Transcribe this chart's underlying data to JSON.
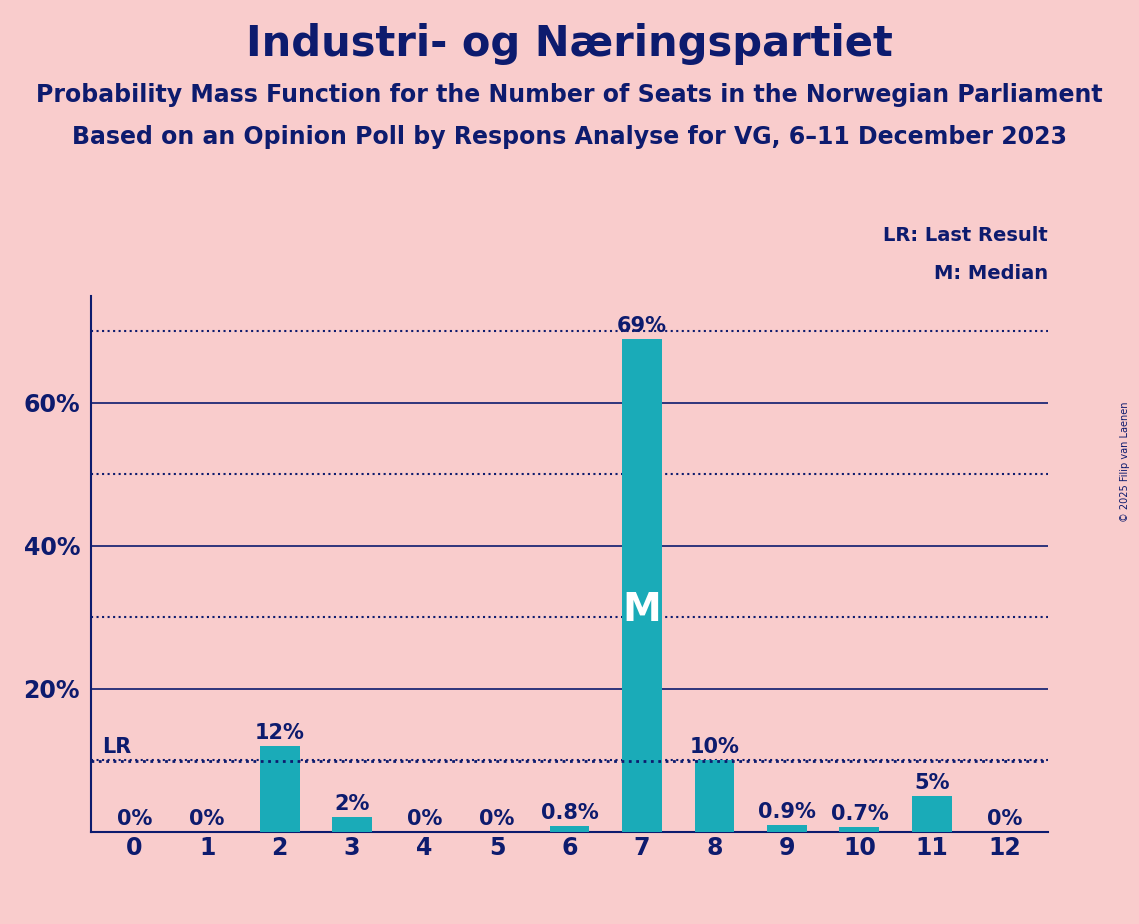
{
  "title": "Industri- og Næringspartiet",
  "subtitle1": "Probability Mass Function for the Number of Seats in the Norwegian Parliament",
  "subtitle2": "Based on an Opinion Poll by Respons Analyse for VG, 6–11 December 2023",
  "copyright": "© 2025 Filip van Laenen",
  "categories": [
    0,
    1,
    2,
    3,
    4,
    5,
    6,
    7,
    8,
    9,
    10,
    11,
    12
  ],
  "values": [
    0.0,
    0.0,
    0.12,
    0.02,
    0.0,
    0.0,
    0.008,
    0.69,
    0.1,
    0.009,
    0.007,
    0.05,
    0.0
  ],
  "labels": [
    "0%",
    "0%",
    "12%",
    "2%",
    "0%",
    "0%",
    "0.8%",
    "69%",
    "10%",
    "0.9%",
    "0.7%",
    "5%",
    "0%"
  ],
  "bar_color": "#1AABB8",
  "background_color": "#F9CCCC",
  "text_color": "#0D1B6E",
  "median_seat": 7,
  "lr_value": 0.099,
  "lr_label": "LR",
  "lr_legend": "LR: Last Result",
  "median_legend": "M: Median",
  "median_label": "M",
  "ylim": [
    0,
    0.75
  ],
  "solid_yticks": [
    0.2,
    0.4,
    0.6
  ],
  "solid_ytick_labels": [
    "20%",
    "40%",
    "60%"
  ],
  "dotted_yticks": [
    0.1,
    0.3,
    0.5,
    0.7
  ],
  "title_fontsize": 30,
  "subtitle_fontsize": 17,
  "label_fontsize": 15,
  "tick_fontsize": 17,
  "bar_width": 0.55
}
